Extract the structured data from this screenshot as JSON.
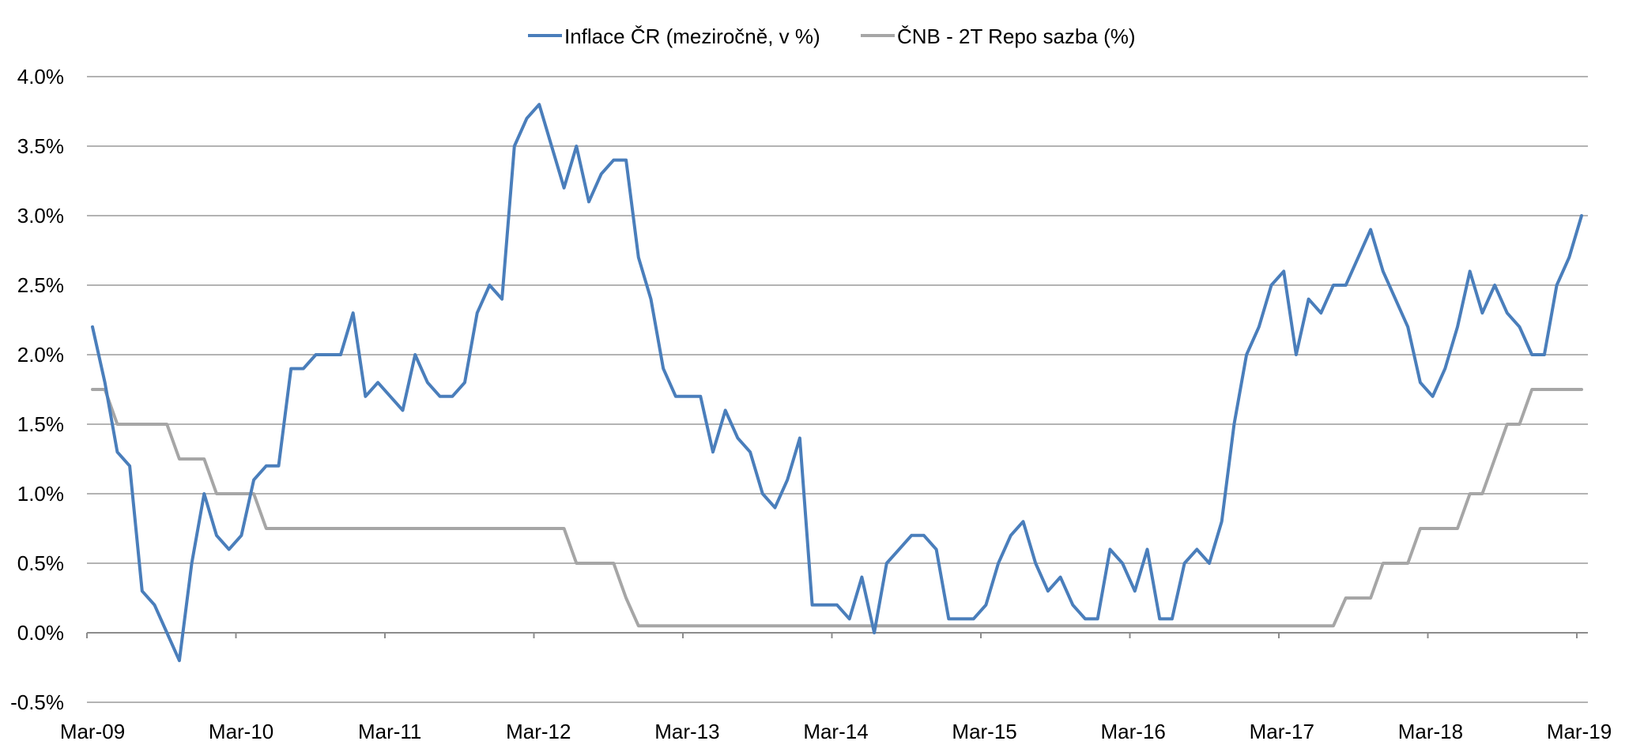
{
  "chart_data": {
    "type": "line",
    "title": "",
    "xlabel": "",
    "ylabel": "",
    "legend_position": "top-center",
    "grid": true,
    "ylim": [
      -0.5,
      4.0
    ],
    "yticks": [
      -0.5,
      0.0,
      0.5,
      1.0,
      1.5,
      2.0,
      2.5,
      3.0,
      3.5,
      4.0
    ],
    "ytick_labels": [
      "-0.5%",
      "0.0%",
      "0.5%",
      "1.0%",
      "1.5%",
      "2.0%",
      "2.5%",
      "3.0%",
      "3.5%",
      "4.0%"
    ],
    "xtick_labels": [
      "Mar-09",
      "Mar-10",
      "Mar-11",
      "Mar-12",
      "Mar-13",
      "Mar-14",
      "Mar-15",
      "Mar-16",
      "Mar-17",
      "Mar-18",
      "Mar-19"
    ],
    "x_start": "Mar-09",
    "x_end": "Mar-19",
    "colors": {
      "inflation": "#4a7ebb",
      "repo": "#a6a6a6",
      "grid": "#9a9a9a",
      "axis": "#8c8c8c"
    },
    "series": [
      {
        "name": "Inflace ČR (meziročně, v %)",
        "values": [
          2.2,
          1.8,
          1.3,
          1.2,
          0.3,
          0.2,
          0.0,
          -0.2,
          0.5,
          1.0,
          0.7,
          0.6,
          0.7,
          1.1,
          1.2,
          1.2,
          1.9,
          1.9,
          2.0,
          2.0,
          2.0,
          2.3,
          1.7,
          1.8,
          1.7,
          1.6,
          2.0,
          1.8,
          1.7,
          1.7,
          1.8,
          2.3,
          2.5,
          2.4,
          3.5,
          3.7,
          3.8,
          3.5,
          3.2,
          3.5,
          3.1,
          3.3,
          3.4,
          3.4,
          2.7,
          2.4,
          1.9,
          1.7,
          1.7,
          1.7,
          1.3,
          1.6,
          1.4,
          1.3,
          1.0,
          0.9,
          1.1,
          1.4,
          0.2,
          0.2,
          0.2,
          0.1,
          0.4,
          0.0,
          0.5,
          0.6,
          0.7,
          0.7,
          0.6,
          0.1,
          0.1,
          0.1,
          0.2,
          0.5,
          0.7,
          0.8,
          0.5,
          0.3,
          0.4,
          0.2,
          0.1,
          0.1,
          0.6,
          0.5,
          0.3,
          0.6,
          0.1,
          0.1,
          0.5,
          0.6,
          0.5,
          0.8,
          1.5,
          2.0,
          2.2,
          2.5,
          2.6,
          2.0,
          2.4,
          2.3,
          2.5,
          2.5,
          2.7,
          2.9,
          2.6,
          2.4,
          2.2,
          1.8,
          1.7,
          1.9,
          2.2,
          2.6,
          2.3,
          2.5,
          2.3,
          2.2,
          2.0,
          2.0,
          2.5,
          2.7,
          3.0
        ]
      },
      {
        "name": "ČNB - 2T Repo sazba (%)",
        "values": [
          1.75,
          1.75,
          1.5,
          1.5,
          1.5,
          1.5,
          1.5,
          1.25,
          1.25,
          1.25,
          1.0,
          1.0,
          1.0,
          1.0,
          0.75,
          0.75,
          0.75,
          0.75,
          0.75,
          0.75,
          0.75,
          0.75,
          0.75,
          0.75,
          0.75,
          0.75,
          0.75,
          0.75,
          0.75,
          0.75,
          0.75,
          0.75,
          0.75,
          0.75,
          0.75,
          0.75,
          0.75,
          0.75,
          0.75,
          0.5,
          0.5,
          0.5,
          0.5,
          0.25,
          0.05,
          0.05,
          0.05,
          0.05,
          0.05,
          0.05,
          0.05,
          0.05,
          0.05,
          0.05,
          0.05,
          0.05,
          0.05,
          0.05,
          0.05,
          0.05,
          0.05,
          0.05,
          0.05,
          0.05,
          0.05,
          0.05,
          0.05,
          0.05,
          0.05,
          0.05,
          0.05,
          0.05,
          0.05,
          0.05,
          0.05,
          0.05,
          0.05,
          0.05,
          0.05,
          0.05,
          0.05,
          0.05,
          0.05,
          0.05,
          0.05,
          0.05,
          0.05,
          0.05,
          0.05,
          0.05,
          0.05,
          0.05,
          0.05,
          0.05,
          0.05,
          0.05,
          0.05,
          0.05,
          0.05,
          0.05,
          0.05,
          0.25,
          0.25,
          0.25,
          0.5,
          0.5,
          0.5,
          0.75,
          0.75,
          0.75,
          0.75,
          1.0,
          1.0,
          1.25,
          1.5,
          1.5,
          1.75,
          1.75,
          1.75,
          1.75,
          1.75
        ]
      }
    ]
  }
}
